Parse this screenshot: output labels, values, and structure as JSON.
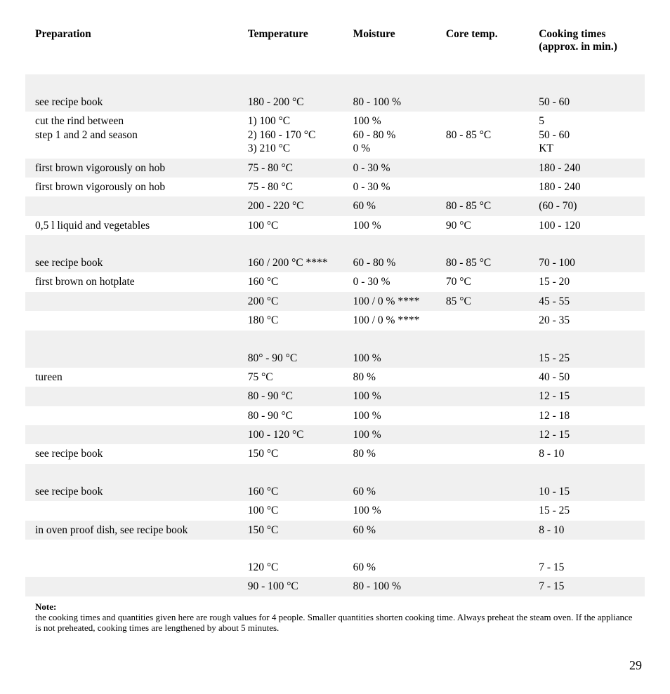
{
  "table": {
    "columns": [
      "Preparation",
      "Temperature",
      "Moisture",
      "Core temp.",
      "Cooking times (approx. in min.)"
    ],
    "rows": [
      {
        "blank": true,
        "shade": "odd"
      },
      {
        "cells": [
          "see recipe book",
          "180 - 200 °C",
          "80 - 100 %",
          "",
          "50 - 60"
        ],
        "shade": "odd"
      },
      {
        "cells": [
          "cut the rind between\nstep 1 and 2 and season",
          "1) 100 °C\n2) 160 - 170 °C\n3) 210 °C",
          "100 %\n60 - 80 %\n0 %",
          "\n80 - 85 °C",
          "5\n50 - 60\nKT"
        ],
        "shade": "even"
      },
      {
        "cells": [
          "first brown vigorously on hob",
          "75 - 80 °C",
          "0 - 30 %",
          "",
          "180 - 240"
        ],
        "shade": "odd"
      },
      {
        "cells": [
          "first brown vigorously on hob",
          "75 - 80 °C",
          "0 - 30 %",
          "",
          "180 - 240"
        ],
        "shade": "even"
      },
      {
        "cells": [
          "",
          "200 - 220 °C",
          "60 %",
          "80 - 85 °C",
          "(60 - 70)"
        ],
        "shade": "odd"
      },
      {
        "cells": [
          "0,5 l liquid and vegetables",
          "100 °C",
          "100 %",
          "90 °C",
          "100 - 120"
        ],
        "shade": "even"
      },
      {
        "blank": true,
        "shade": "odd"
      },
      {
        "cells": [
          "see recipe book",
          "160 / 200 °C ****",
          "60 - 80 %",
          "80 - 85 °C",
          "70 - 100"
        ],
        "shade": "odd"
      },
      {
        "cells": [
          "first brown on hotplate",
          "160 °C",
          "0 - 30 %",
          "70 °C",
          "15 - 20"
        ],
        "shade": "even"
      },
      {
        "cells": [
          "",
          "200 °C",
          "100 / 0 % ****",
          "85 °C",
          "45 - 55"
        ],
        "shade": "odd"
      },
      {
        "cells": [
          "",
          "180 °C",
          "100 / 0 % ****",
          "",
          "20 - 35"
        ],
        "shade": "even"
      },
      {
        "blank": true,
        "shade": "odd"
      },
      {
        "cells": [
          "",
          "80° - 90 °C",
          "100 %",
          "",
          "15 - 25"
        ],
        "shade": "odd"
      },
      {
        "cells": [
          "tureen",
          "75 °C",
          "80 %",
          "",
          "40 - 50"
        ],
        "shade": "even"
      },
      {
        "cells": [
          "",
          "80 - 90 °C",
          "100 %",
          "",
          "12 - 15"
        ],
        "shade": "odd"
      },
      {
        "cells": [
          "",
          "80 - 90 °C",
          "100 %",
          "",
          "12 - 18"
        ],
        "shade": "even"
      },
      {
        "cells": [
          "",
          "100 - 120 °C",
          "100 %",
          "",
          "12 - 15"
        ],
        "shade": "odd"
      },
      {
        "cells": [
          "see recipe book",
          "150 °C",
          "80 %",
          "",
          "8 - 10"
        ],
        "shade": "even"
      },
      {
        "blank": true,
        "shade": "odd"
      },
      {
        "cells": [
          "see recipe book",
          "160 °C",
          "60 %",
          "",
          "10 - 15"
        ],
        "shade": "odd"
      },
      {
        "cells": [
          "",
          "100 °C",
          "100 %",
          "",
          "15 - 25"
        ],
        "shade": "even"
      },
      {
        "cells": [
          "in oven proof dish, see recipe book",
          "150 °C",
          "60 %",
          "",
          "8 - 10"
        ],
        "shade": "odd"
      },
      {
        "blank": true,
        "shade": "even"
      },
      {
        "cells": [
          "",
          "120 °C",
          "60 %",
          "",
          "7 - 15"
        ],
        "shade": "even"
      },
      {
        "cells": [
          "",
          "90 - 100 °C",
          "80 - 100 %",
          "",
          "7 - 15"
        ],
        "shade": "odd"
      }
    ]
  },
  "note": {
    "label": "Note:",
    "body": "the cooking times and quantities given here are rough values for 4 people. Smaller quantities shorten cooking time. Always preheat the steam oven. If the appliance is not preheated, cooking times are lengthened by about 5 minutes."
  },
  "page_number": "29"
}
